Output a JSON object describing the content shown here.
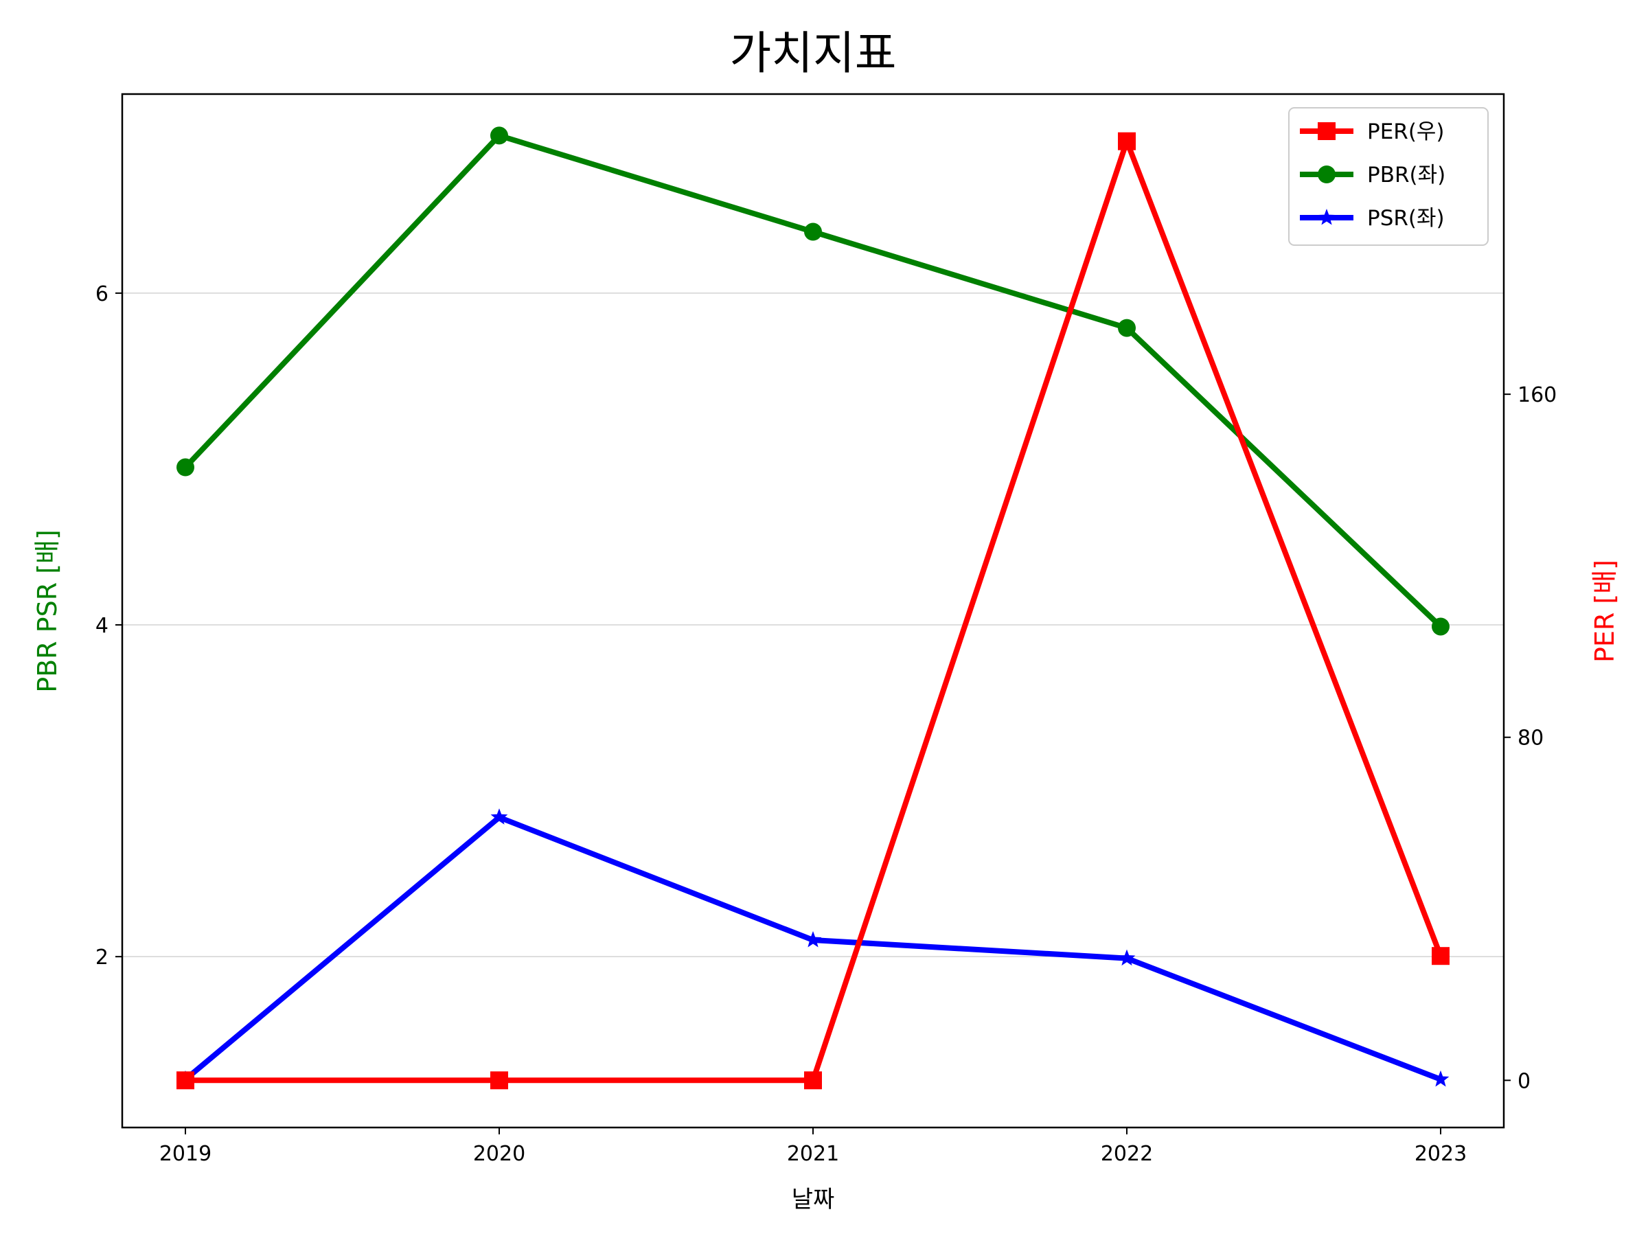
{
  "chart_data": {
    "type": "line",
    "title": "가치지표",
    "xlabel": "날짜",
    "ylabel_left": "PBR PSR [배]",
    "ylabel_right": "PER [배]",
    "categories": [
      "2019",
      "2020",
      "2021",
      "2022",
      "2023"
    ],
    "left_axis": {
      "ylim": [
        0.97,
        7.2
      ],
      "ticks": [
        2,
        4,
        6
      ],
      "tick_labels": [
        "2",
        "4",
        "6"
      ],
      "color": "#008000"
    },
    "right_axis": {
      "ylim": [
        -11,
        230
      ],
      "ticks": [
        0,
        80,
        160
      ],
      "tick_labels": [
        "0",
        "80",
        "160"
      ],
      "color": "#ff0000"
    },
    "grid": "horizontal (left axis)",
    "legend_position": "top-right",
    "series": [
      {
        "name": "PER(우)",
        "axis": "right",
        "color": "#ff0000",
        "marker": "square",
        "values": [
          0,
          0,
          0,
          219,
          29
        ]
      },
      {
        "name": "PBR(좌)",
        "axis": "left",
        "color": "#008000",
        "marker": "circle",
        "values": [
          4.95,
          6.95,
          6.37,
          5.79,
          3.99
        ]
      },
      {
        "name": "PSR(좌)",
        "axis": "left",
        "color": "#0000ff",
        "marker": "star",
        "values": [
          1.26,
          2.84,
          2.1,
          1.99,
          1.26
        ]
      }
    ]
  }
}
